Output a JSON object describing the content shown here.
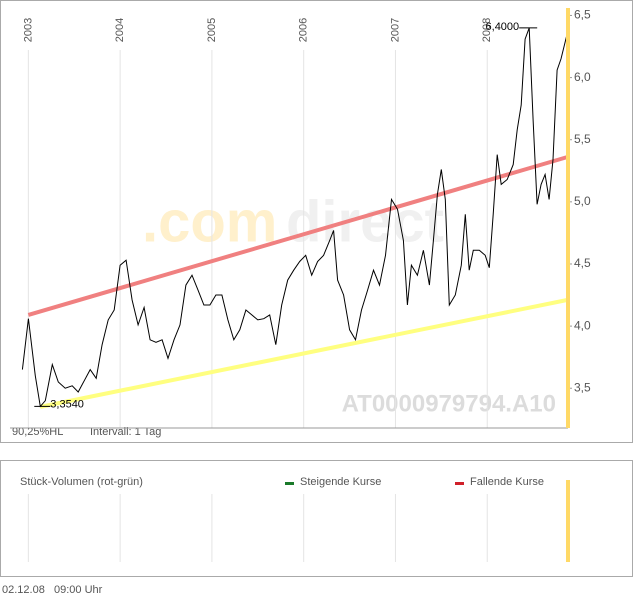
{
  "chart_data": {
    "type": "line",
    "series": [
      {
        "name": "AT0000979794.A10",
        "color": "#000000",
        "x": [
          2002.935,
          2003.0,
          2003.076,
          2003.13,
          2003.185,
          2003.261,
          2003.326,
          2003.402,
          2003.478,
          2003.543,
          2003.609,
          2003.674,
          2003.739,
          2003.804,
          2003.87,
          2003.935,
          2004.0,
          2004.065,
          2004.13,
          2004.196,
          2004.261,
          2004.326,
          2004.391,
          2004.457,
          2004.522,
          2004.587,
          2004.652,
          2004.717,
          2004.783,
          2004.848,
          2004.913,
          2004.978,
          2005.043,
          2005.109,
          2005.174,
          2005.239,
          2005.304,
          2005.37,
          2005.435,
          2005.5,
          2005.565,
          2005.63,
          2005.696,
          2005.761,
          2005.826,
          2005.891,
          2005.957,
          2006.022,
          2006.087,
          2006.152,
          2006.217,
          2006.283,
          2006.326,
          2006.37,
          2006.435,
          2006.5,
          2006.565,
          2006.63,
          2006.696,
          2006.761,
          2006.826,
          2006.891,
          2006.957,
          2007.022,
          2007.087,
          2007.13,
          2007.174,
          2007.239,
          2007.304,
          2007.37,
          2007.413,
          2007.457,
          2007.5,
          2007.543,
          2007.587,
          2007.652,
          2007.717,
          2007.761,
          2007.804,
          2007.848,
          2007.913,
          2007.978,
          2008.022,
          2008.065,
          2008.109,
          2008.152,
          2008.217,
          2008.283,
          2008.326,
          2008.37,
          2008.413,
          2008.457,
          2008.5,
          2008.543,
          2008.587,
          2008.63,
          2008.674,
          2008.717,
          2008.761,
          2008.804,
          2008.87
        ],
        "values": [
          3.65,
          4.06,
          3.6,
          3.354,
          3.4,
          3.69,
          3.55,
          3.5,
          3.52,
          3.47,
          3.56,
          3.65,
          3.58,
          3.85,
          4.05,
          4.13,
          4.49,
          4.53,
          4.21,
          4.01,
          4.15,
          3.89,
          3.87,
          3.89,
          3.74,
          3.89,
          4.01,
          4.33,
          4.41,
          4.29,
          4.17,
          4.17,
          4.25,
          4.25,
          4.05,
          3.89,
          3.97,
          4.13,
          4.09,
          4.05,
          4.06,
          4.09,
          3.85,
          4.17,
          4.37,
          4.45,
          4.52,
          4.57,
          4.41,
          4.52,
          4.57,
          4.69,
          4.77,
          4.37,
          4.25,
          3.97,
          3.89,
          4.13,
          4.29,
          4.45,
          4.33,
          4.57,
          5.02,
          4.94,
          4.69,
          4.17,
          4.49,
          4.41,
          4.61,
          4.33,
          4.69,
          5.06,
          5.26,
          5.02,
          4.17,
          4.25,
          4.49,
          4.9,
          4.45,
          4.61,
          4.61,
          4.57,
          4.47,
          4.9,
          5.38,
          5.14,
          5.18,
          5.3,
          5.58,
          5.78,
          6.31,
          6.4,
          5.66,
          4.98,
          5.14,
          5.22,
          5.02,
          5.34,
          6.06,
          6.15,
          6.35
        ]
      }
    ],
    "trendlines": [
      {
        "color": "#f08080",
        "x": [
          2003.0,
          2008.87
        ],
        "values": [
          4.09,
          5.36
        ]
      },
      {
        "color": "#ffff80",
        "x": [
          2003.13,
          2008.87
        ],
        "values": [
          3.35,
          4.21
        ]
      }
    ],
    "annotations": {
      "max": "6,4000",
      "min": "3,3540"
    },
    "xlim": [
      2002.8,
      2008.88
    ],
    "xticks": [
      2003,
      2004,
      2005,
      2006,
      2007,
      2008
    ],
    "ylim": [
      3.18,
      6.56
    ],
    "yticks": [
      {
        "value": 3.5,
        "label": "3,5"
      },
      {
        "value": 4,
        "label": "4,0"
      },
      {
        "value": 4.5,
        "label": "4,5"
      },
      {
        "value": 5,
        "label": "5,0"
      },
      {
        "value": 5.5,
        "label": "5,5"
      },
      {
        "value": 6,
        "label": "6,0"
      },
      {
        "value": 6.5,
        "label": "6,5"
      }
    ],
    "watermark": [
      ".com",
      "direct"
    ],
    "footer": [
      "90,25%HL",
      "Intervall: 1 Tag"
    ],
    "volume_panel": {
      "title": "Stück-Volumen (rot-grün)",
      "legend": [
        {
          "name": "Steigende Kurse",
          "color": "#1a7a2a"
        },
        {
          "name": "Fallende Kurse",
          "color": "#d0202a"
        }
      ]
    },
    "timestamp": "02.12.08   09:00 Uhr"
  }
}
